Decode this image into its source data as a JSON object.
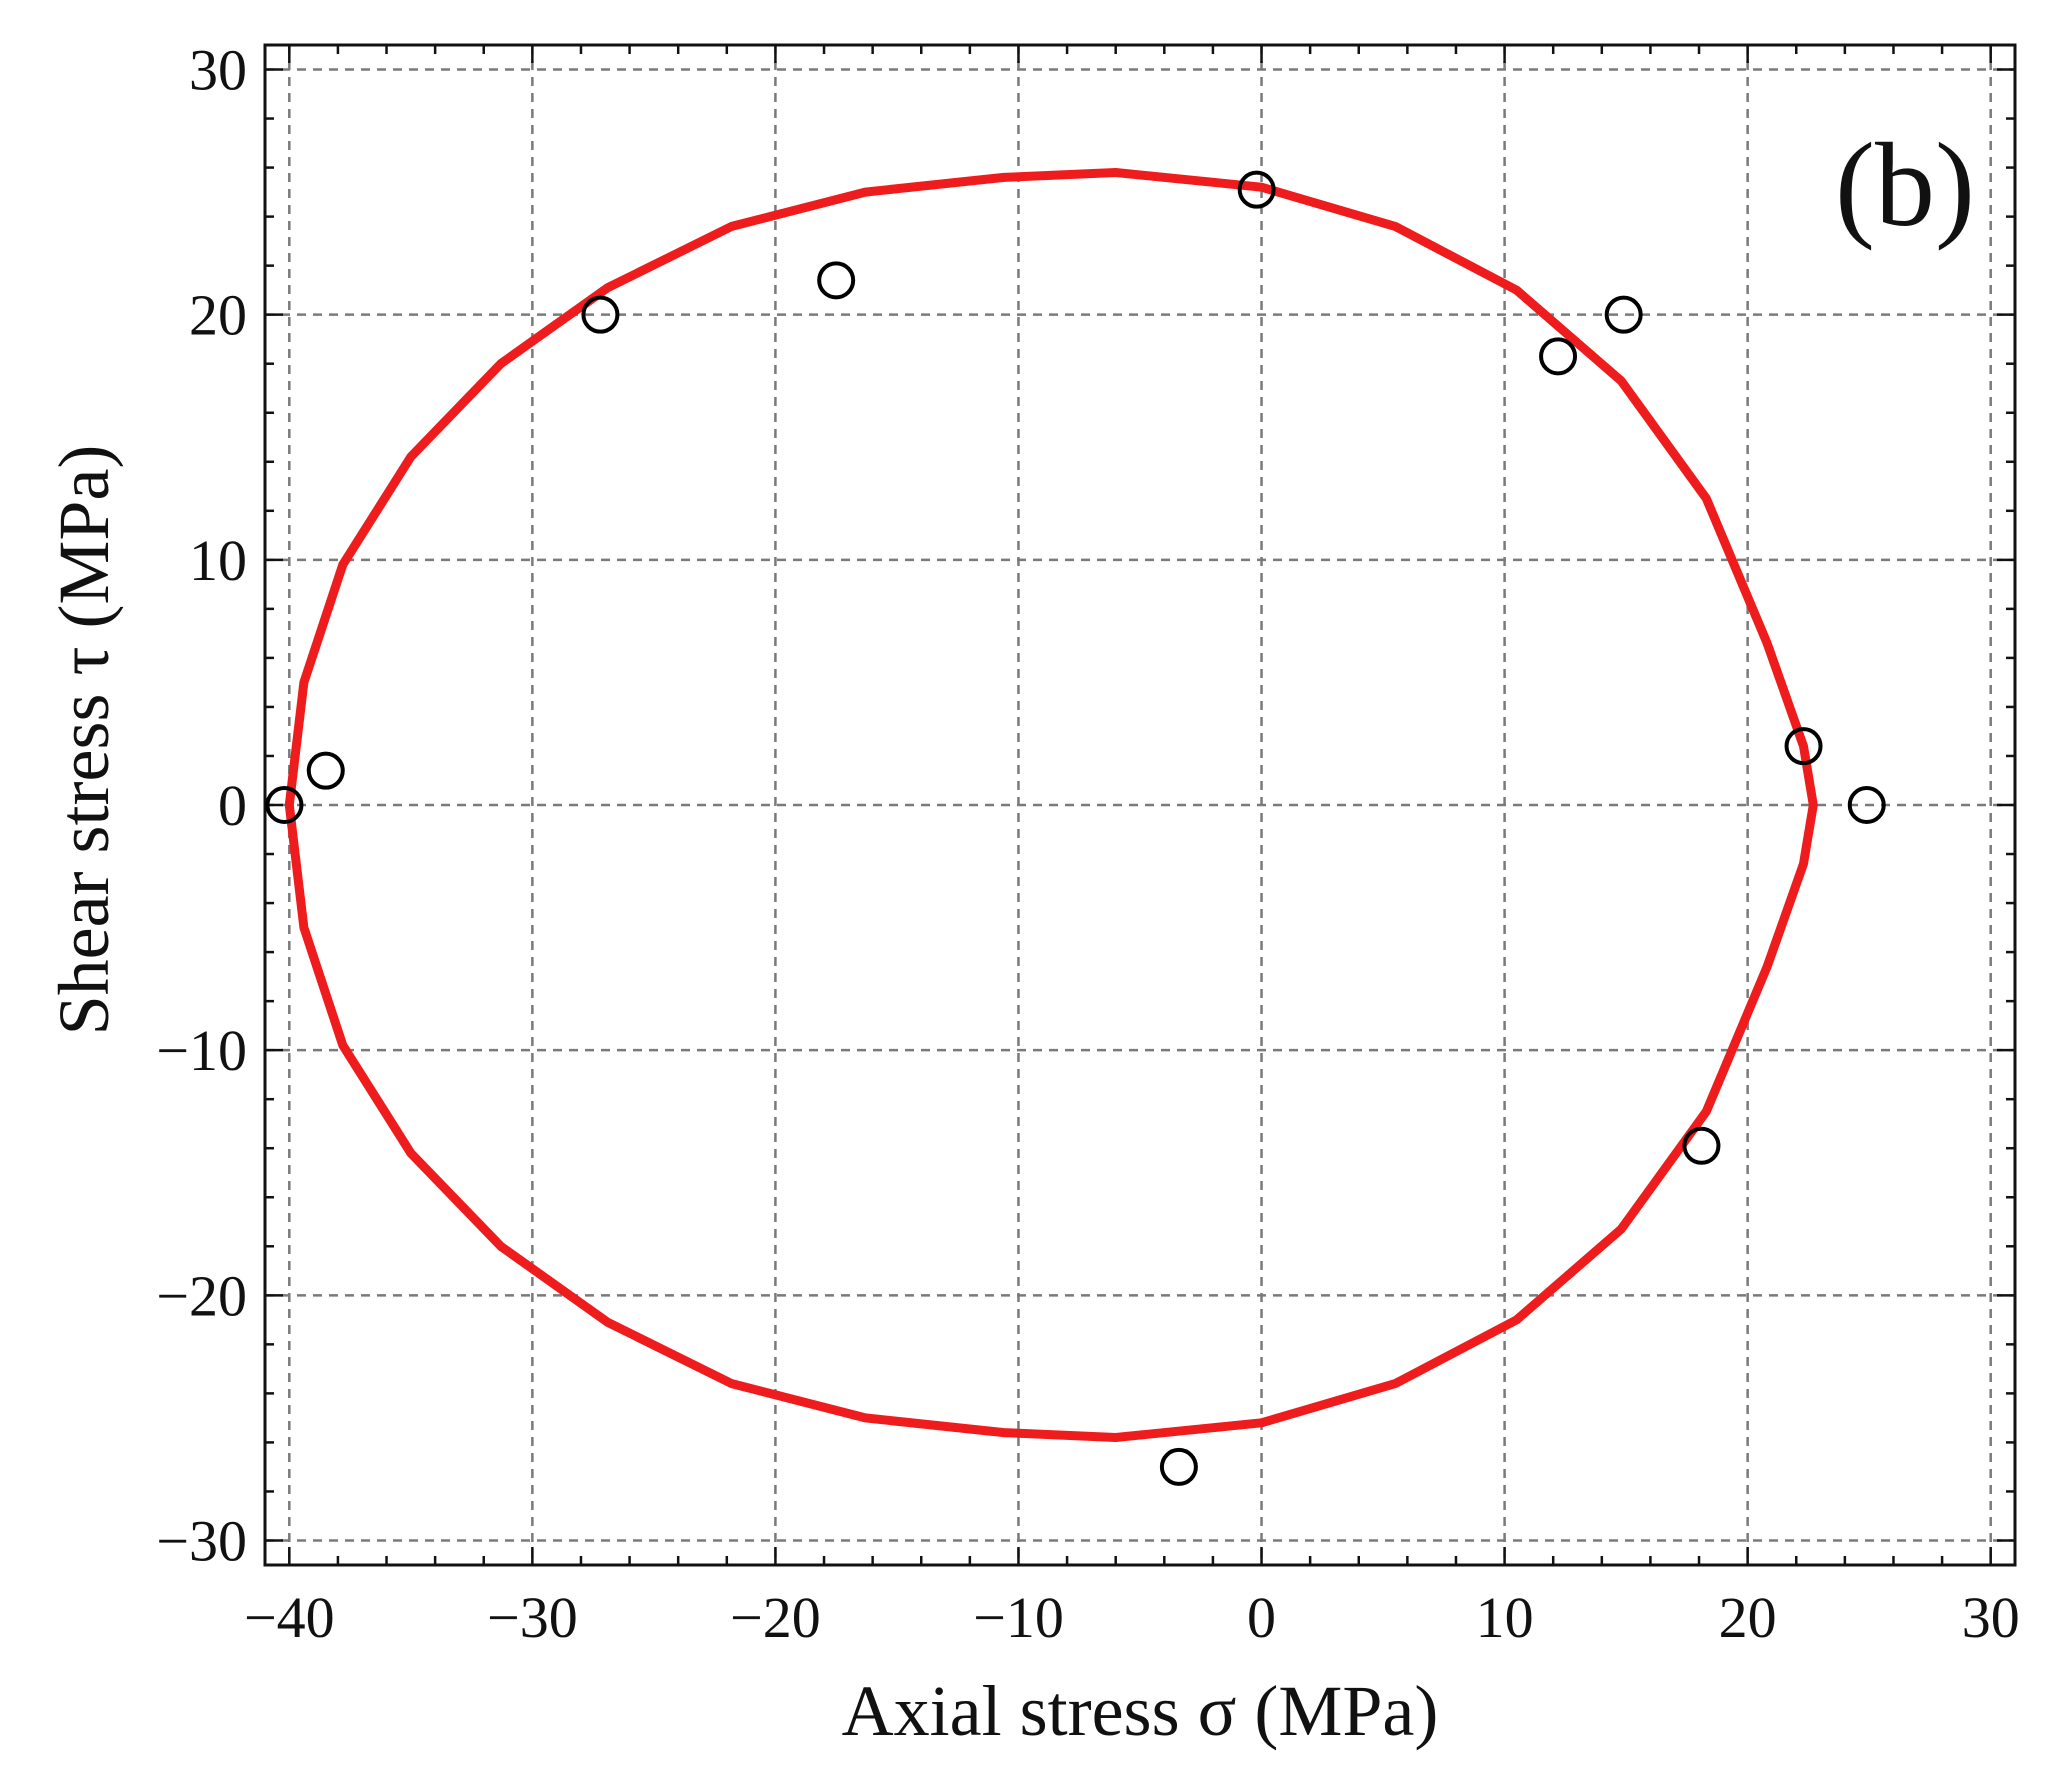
{
  "chart_data": {
    "type": "scatter",
    "title": "",
    "panel_label": "(b)",
    "xlabel": "Axial stress σ (MPa)",
    "ylabel": "Shear stress τ (MPa)",
    "xlim": [
      -41,
      31
    ],
    "ylim": [
      -31,
      31
    ],
    "x_ticks": [
      -40,
      -30,
      -20,
      -10,
      0,
      10,
      20,
      30
    ],
    "y_ticks": [
      -30,
      -20,
      -10,
      0,
      10,
      20,
      30
    ],
    "x_tick_labels": [
      "−40",
      "−30",
      "−20",
      "−10",
      "0",
      "10",
      "20",
      "30"
    ],
    "y_tick_labels": [
      "−30",
      "−20",
      "−10",
      "0",
      "10",
      "20",
      "30"
    ],
    "grid": true,
    "points": [
      {
        "x": -40.2,
        "y": 0.0
      },
      {
        "x": -38.5,
        "y": 1.4
      },
      {
        "x": -27.2,
        "y": 20.0
      },
      {
        "x": -17.5,
        "y": 21.4
      },
      {
        "x": -0.2,
        "y": 25.1
      },
      {
        "x": 12.2,
        "y": 18.3
      },
      {
        "x": 14.9,
        "y": 20.0
      },
      {
        "x": 22.3,
        "y": 2.4
      },
      {
        "x": 24.9,
        "y": 0.0
      },
      {
        "x": 18.1,
        "y": -13.9
      },
      {
        "x": -3.4,
        "y": -27.0
      }
    ],
    "curve": {
      "x": [
        -40.0,
        -39.4,
        -37.8,
        -35.0,
        -31.3,
        -26.9,
        -21.8,
        -16.3,
        -10.6,
        -6.0,
        0.0,
        5.5,
        10.5,
        14.8,
        18.3,
        20.8,
        22.3,
        22.7,
        22.3,
        20.8,
        18.3,
        14.8,
        10.5,
        5.5,
        0.0,
        -6.0,
        -10.6,
        -16.3,
        -21.8,
        -26.9,
        -31.3,
        -35.0,
        -37.8,
        -39.4,
        -40.0
      ],
      "y": [
        0.0,
        5.0,
        9.8,
        14.2,
        18.0,
        21.1,
        23.6,
        25.0,
        25.6,
        25.8,
        25.2,
        23.6,
        21.0,
        17.3,
        12.5,
        6.6,
        2.4,
        0.0,
        -2.4,
        -6.6,
        -12.5,
        -17.3,
        -21.0,
        -23.6,
        -25.2,
        -25.8,
        -25.6,
        -25.0,
        -23.6,
        -21.1,
        -18.0,
        -14.2,
        -9.8,
        -5.0,
        0.0
      ],
      "color": "#ee1c1c"
    }
  }
}
